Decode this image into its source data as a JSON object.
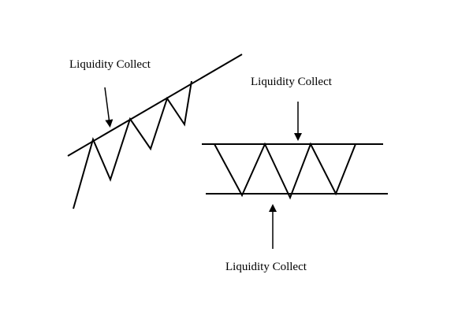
{
  "colors": {
    "background": "#ffffff",
    "ink": "#000000"
  },
  "labels": {
    "trend_liquidity": "Liquidity Collect",
    "range_top_liquidity": "Liquidity Collect",
    "range_bottom_liquidity": "Liquidity Collect"
  }
}
